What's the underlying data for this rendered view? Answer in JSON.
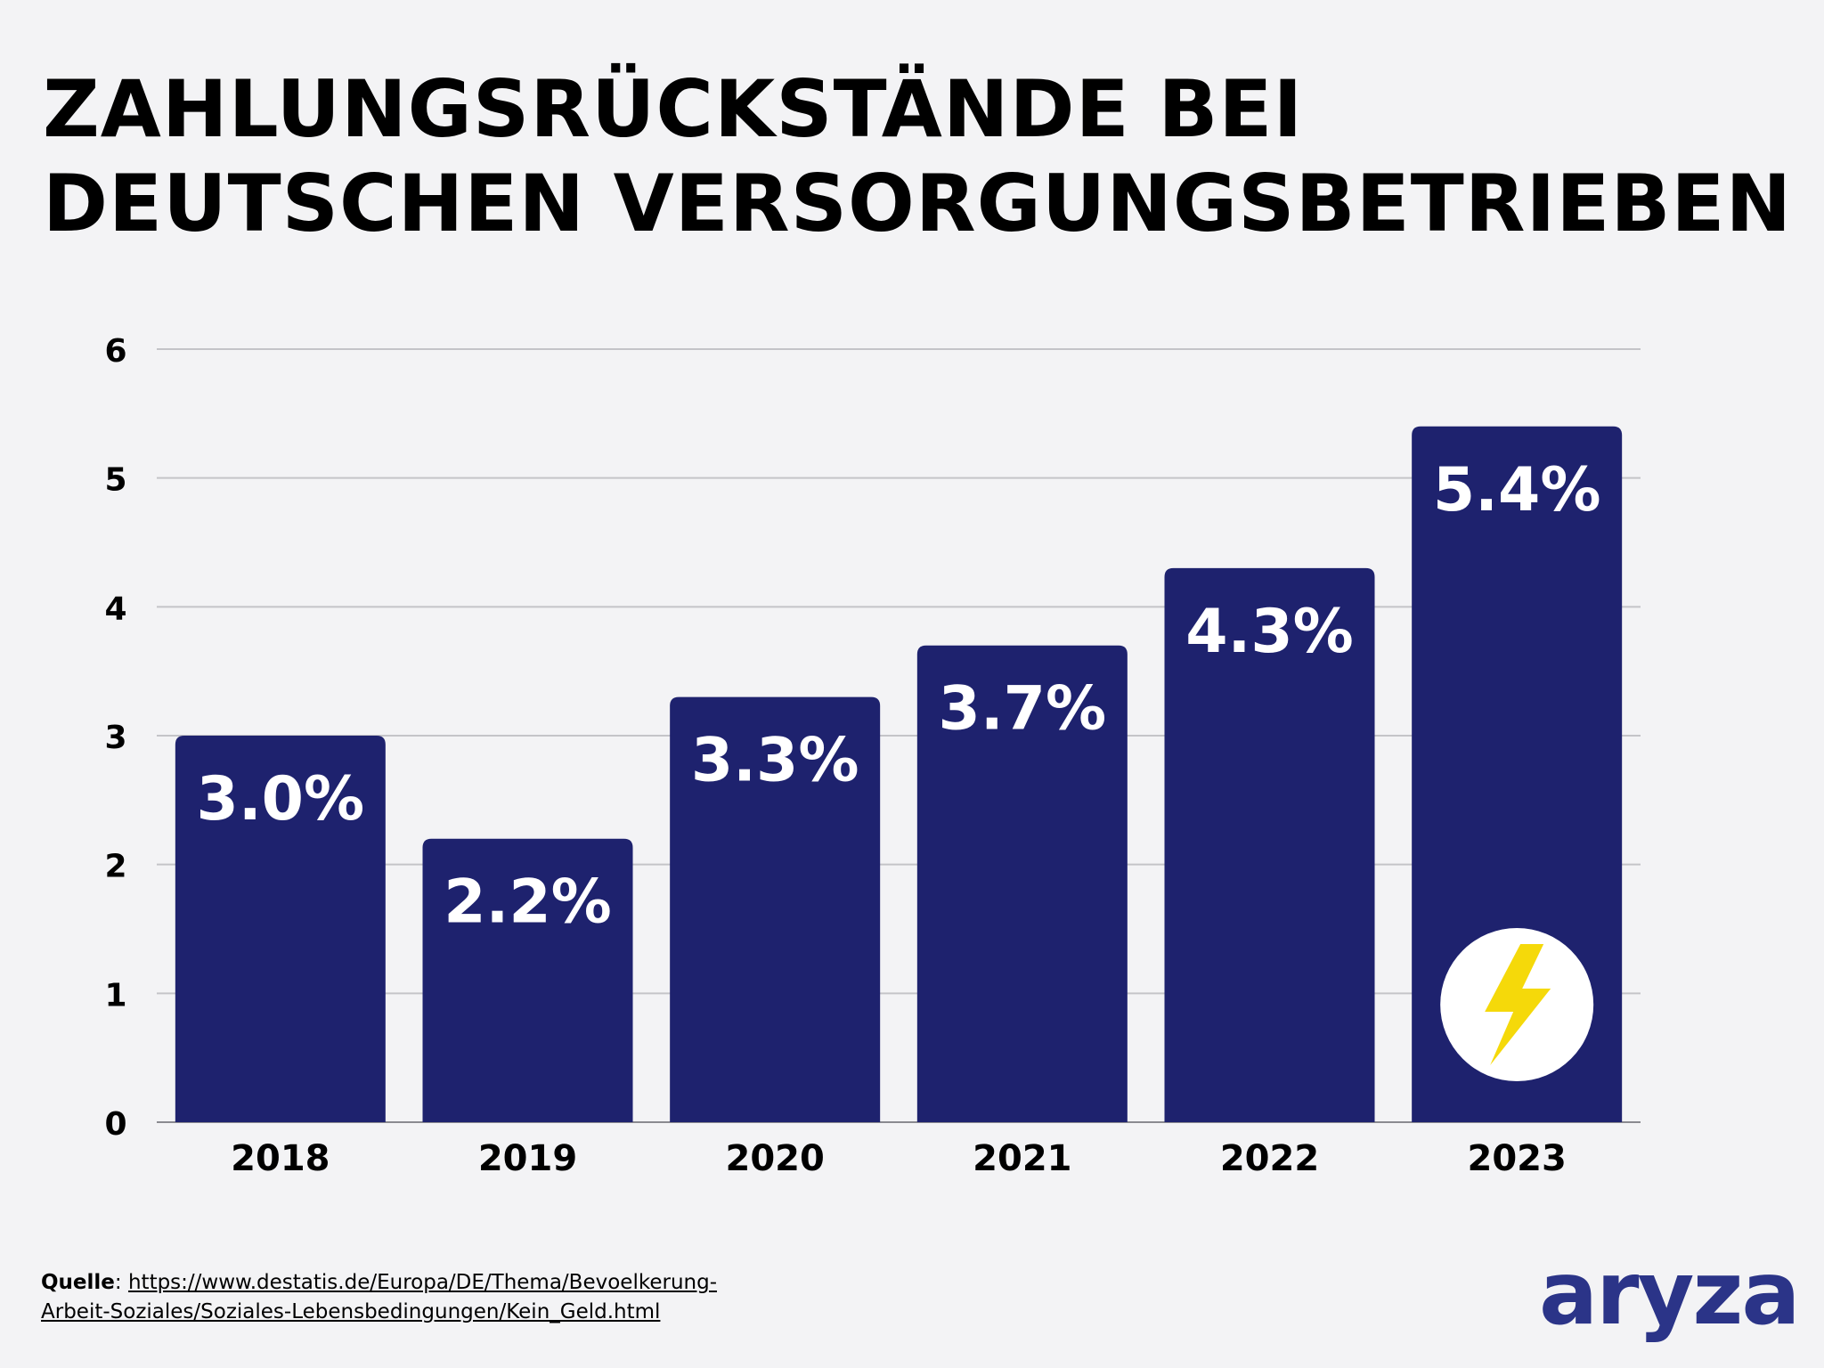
{
  "title": {
    "line1": "ZAHLUNGSRÜCKSTÄNDE BEI",
    "line2": "DEUTSCHEN VERSORGUNGSBETRIEBEN"
  },
  "chart_data": {
    "type": "bar",
    "title": "ZAHLUNGSRÜCKSTÄNDE BEI DEUTSCHEN VERSORGUNGSBETRIEBEN",
    "categories": [
      "2018",
      "2019",
      "2020",
      "2021",
      "2022",
      "2023"
    ],
    "values": [
      3.0,
      2.2,
      3.3,
      3.7,
      4.3,
      5.4
    ],
    "data_labels": [
      "3.0%",
      "2.2%",
      "3.3%",
      "3.7%",
      "4.3%",
      "5.4%"
    ],
    "xlabel": "",
    "ylabel": "",
    "ylim": [
      0,
      6
    ],
    "yticks": [
      "0",
      "1",
      "2",
      "3",
      "4",
      "5",
      "6"
    ],
    "grid": true,
    "legend": "none",
    "bar_color": "#1e226e",
    "label_color": "#ffffff",
    "grid_color": "#c4c4c8",
    "highlight_icon": {
      "name": "lightning-bolt-icon",
      "category_index": 5,
      "circle_color": "#ffffff",
      "bolt_color": "#f5d90a"
    }
  },
  "footer": {
    "source_label": "Quelle",
    "source_sep": ": ",
    "source_url_line1": "https://www.destatis.de/Europa/DE/Thema/Bevoelkerung-",
    "source_url_line2": "Arbeit-Soziales/Soziales-Lebensbedingungen/Kein_Geld.html"
  },
  "brand": {
    "name": "aryza",
    "color": "#2b3488"
  }
}
